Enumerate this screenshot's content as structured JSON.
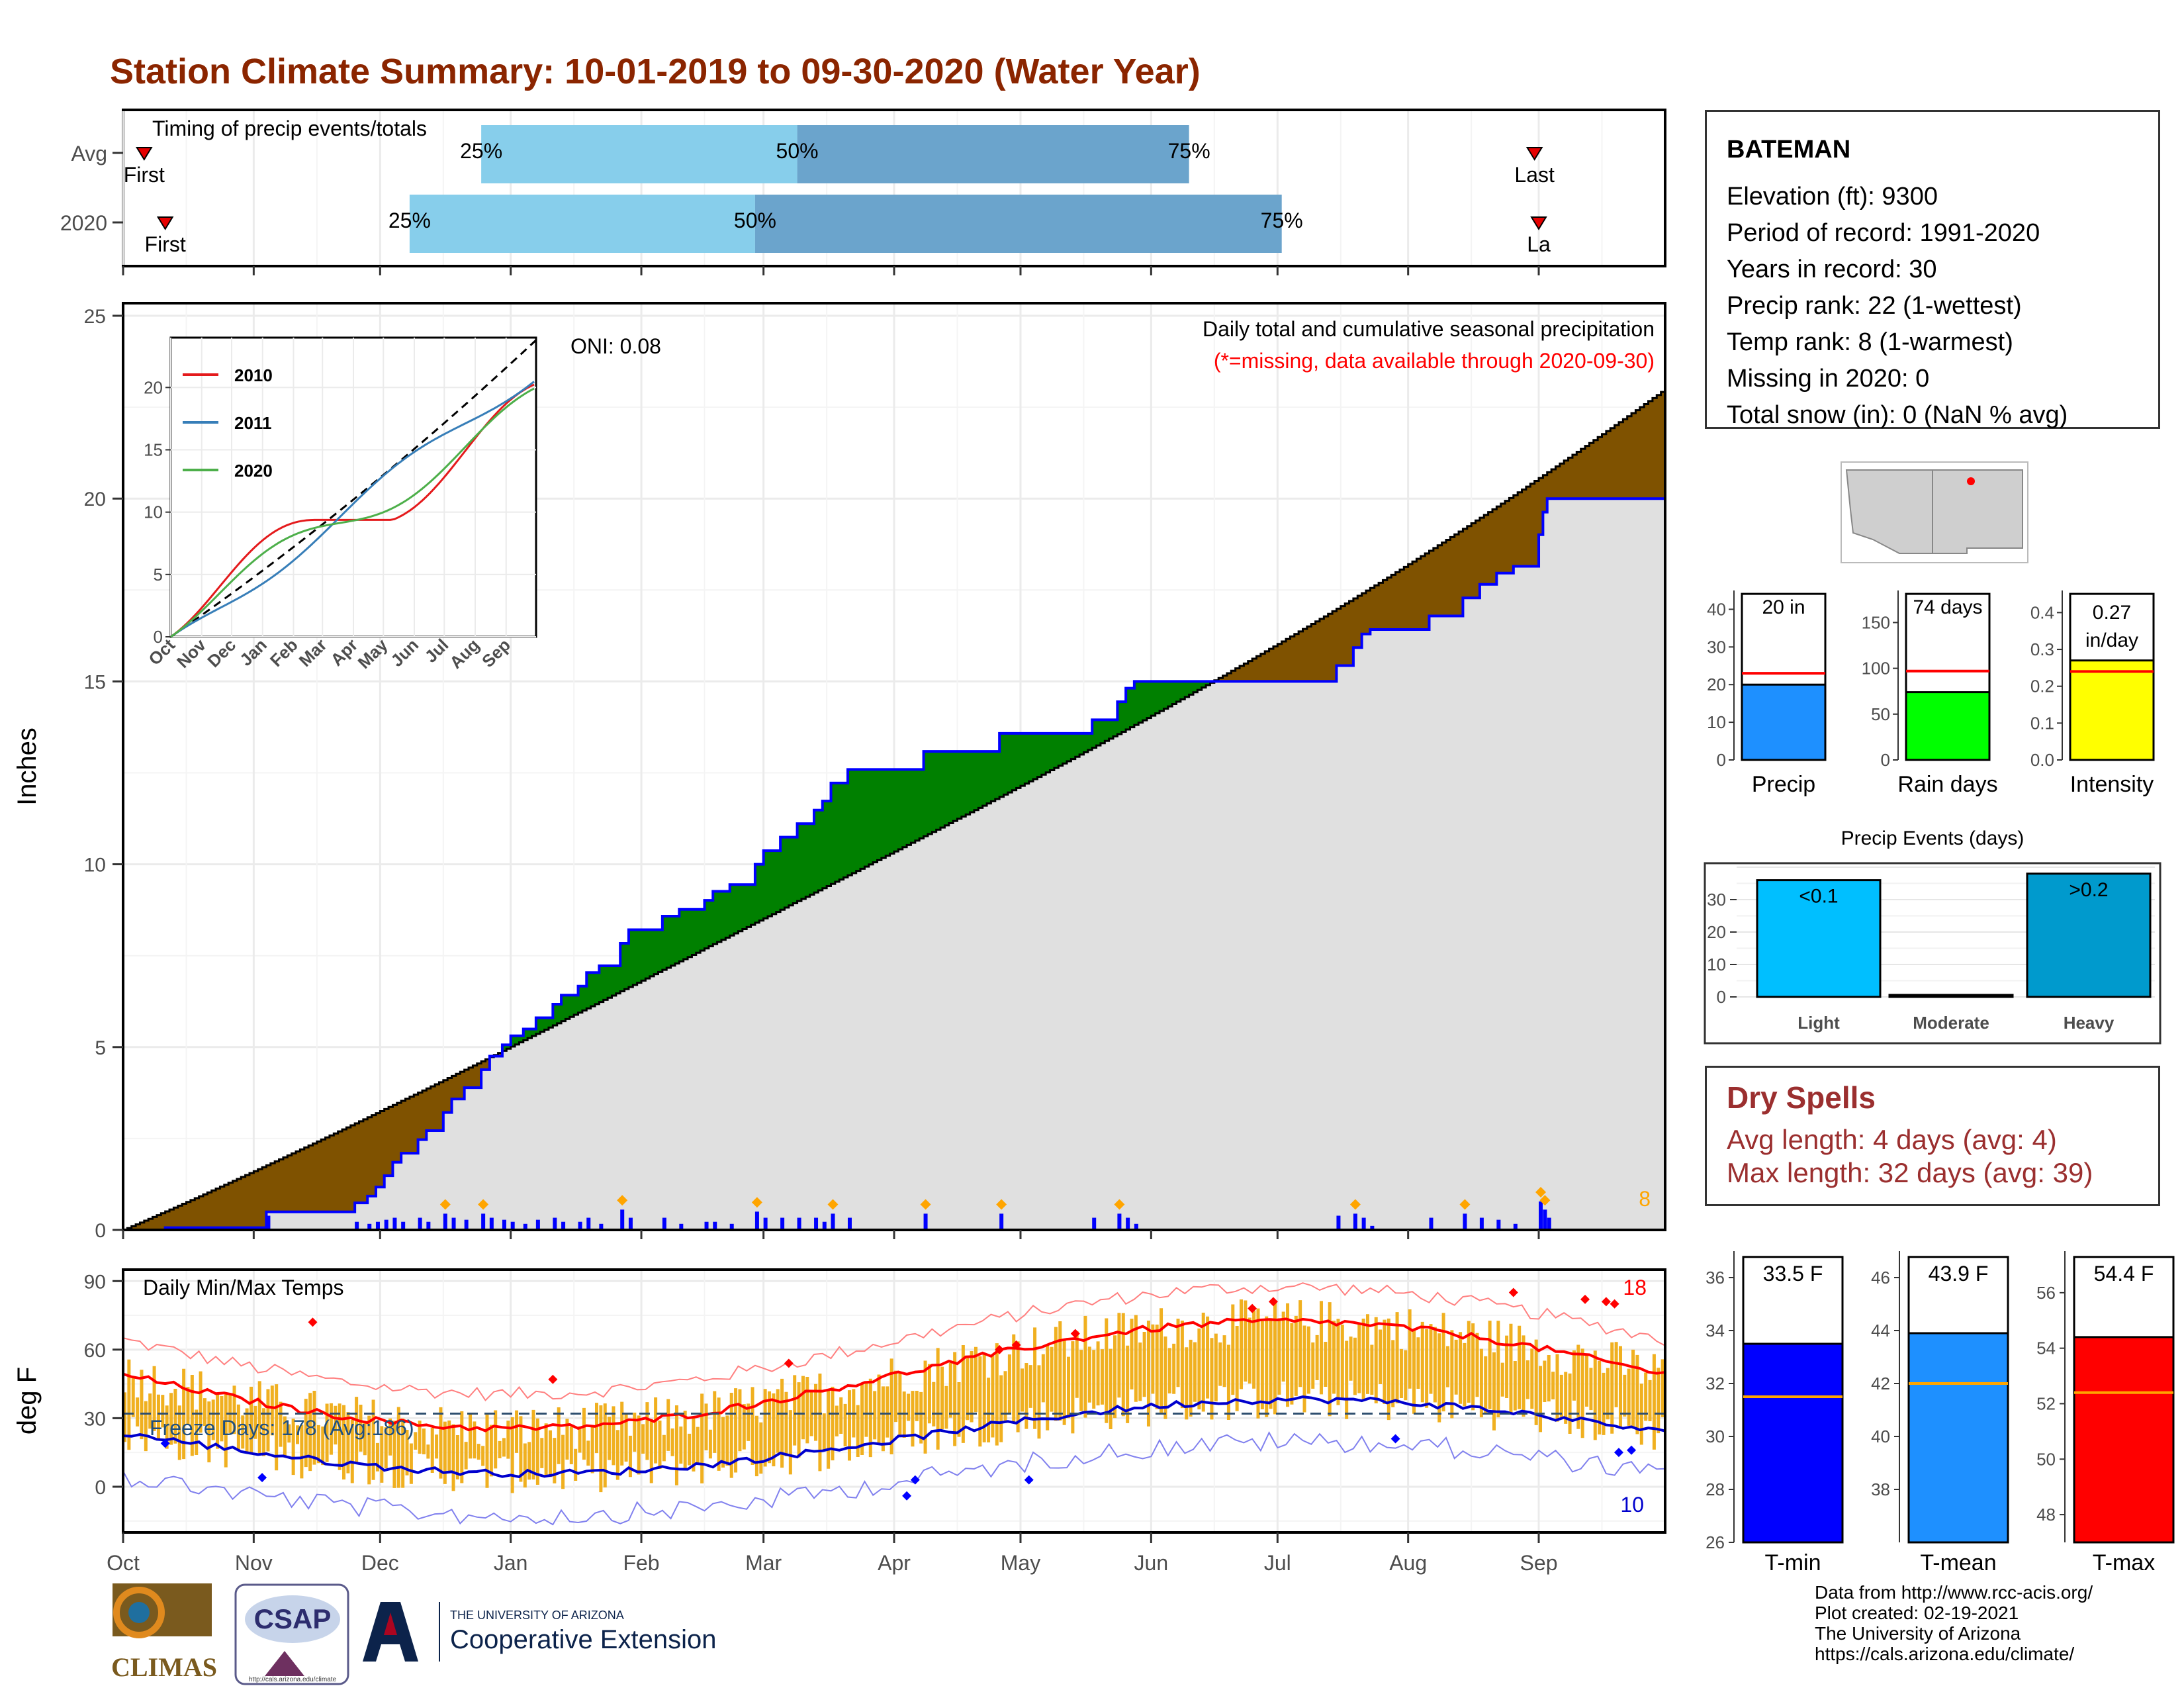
{
  "title": "Station Climate Summary: 10-01-2019 to 09-30-2020 (Water Year)",
  "months": [
    "Oct",
    "Nov",
    "Dec",
    "Jan",
    "Feb",
    "Mar",
    "Apr",
    "May",
    "Jun",
    "Jul",
    "Aug",
    "Sep"
  ],
  "timing": {
    "title": "Timing of precip events/totals",
    "rows": [
      {
        "label": "Avg",
        "first": "First",
        "last": "Last",
        "q25": "25%",
        "q50": "50%",
        "q75": "75%",
        "first_day": 5,
        "q25_day": 85,
        "q50_day": 160,
        "q75_day": 253,
        "last_day": 335
      },
      {
        "label": "2020",
        "first": "First",
        "last": "La",
        "q25": "25%",
        "q50": "50%",
        "q75": "75%",
        "first_day": 10,
        "q25_day": 68,
        "q50_day": 150,
        "q75_day": 275,
        "last_day": 336
      }
    ],
    "colors": {
      "light": "#87ceeb",
      "dark": "#6ba4cc",
      "marker": "#e60000"
    }
  },
  "precip": {
    "ylabel": "Inches",
    "yticks": [
      "0",
      "5",
      "10",
      "15",
      "20",
      "25"
    ],
    "ylim": [
      0,
      25
    ],
    "note1": "Daily total and cumulative seasonal precipitation",
    "note2": "(*=missing, data available through 2020-09-30)",
    "oni": "ONI: 0.08",
    "corner_count": "8",
    "avg_cum_2020_end": 23,
    "obs_cum_2020_end": 20,
    "colors": {
      "deficit": "#7f5200",
      "surplus": "#008000",
      "fill": "#e0e0e0",
      "line": "#0000ff",
      "daily": "#0000ff",
      "marker": "#ffa500"
    },
    "inset": {
      "yticks": [
        "0",
        "5",
        "10",
        "15",
        "20"
      ],
      "legend": [
        "2010",
        "2011",
        "2020"
      ],
      "legend_colors": [
        "#e41a1c",
        "#377eb8",
        "#4daf4a"
      ]
    }
  },
  "temps": {
    "title": "Daily Min/Max Temps",
    "ylabel": "deg F",
    "yticks": [
      "0",
      "30",
      "60",
      "90"
    ],
    "ylim": [
      -20,
      95
    ],
    "freeze": "Freeze Days: 178 (Avg:186)",
    "top_count": "18",
    "bottom_count": "10",
    "freeze_line_f": 32,
    "colors": {
      "bar": "#f0b020",
      "avgmax": "#ff0000",
      "avgmin": "#0000cd",
      "recmax": "#ff8080",
      "recmin": "#8080ee"
    }
  },
  "location_map": {
    "label": "Arizona / New Mexico locator"
  },
  "summary": {
    "station": "BATEMAN",
    "lines": [
      "Elevation (ft): 9300",
      "Period of record: 1991-2020",
      "Years in record: 30",
      "Precip rank: 22 (1-wettest)",
      "Temp rank: 8 (1-warmest)",
      "Missing in 2020: 0",
      "Total snow (in): 0 (NaN % avg)"
    ]
  },
  "mini_bars": [
    {
      "label": "Precip",
      "value_text": "20 in",
      "value": 20,
      "avg": 23,
      "ymax": 45,
      "yticks": [
        "0",
        "10",
        "20",
        "30",
        "40"
      ],
      "ytick_vals": [
        0,
        10,
        20,
        30,
        40
      ],
      "color": "#1e90ff"
    },
    {
      "label": "Rain days",
      "value_text": "74 days",
      "value": 74,
      "avg": 97,
      "ymax": 185,
      "yticks": [
        "0",
        "50",
        "100",
        "150"
      ],
      "ytick_vals": [
        0,
        50,
        100,
        150
      ],
      "color": "#00ff00"
    },
    {
      "label": "Intensity",
      "value_text": "0.27 in/day",
      "value_line1": "0.27",
      "value_line2": "in/day",
      "value": 0.27,
      "avg": 0.24,
      "ymax": 0.46,
      "yticks": [
        "0.0",
        "0.1",
        "0.2",
        "0.3",
        "0.4"
      ],
      "ytick_vals": [
        0,
        0.1,
        0.2,
        0.3,
        0.4
      ],
      "color": "#ffff00"
    }
  ],
  "events": {
    "title": "Precip Events (days)",
    "categories": [
      "Light",
      "Moderate",
      "Heavy"
    ],
    "labels": [
      "<0.1",
      "",
      ">0.2"
    ],
    "values": [
      36,
      0,
      38
    ],
    "colors": [
      "#00bfff",
      "#009acd",
      "#009acd"
    ],
    "yticks": [
      "0",
      "10",
      "20",
      "30"
    ],
    "ytick_vals": [
      0,
      10,
      20,
      30
    ],
    "ymax": 40
  },
  "dry_spells": {
    "title": "Dry Spells",
    "avg": "Avg length: 4 days (avg: 4)",
    "max": "Max length: 32 days (avg: 39)"
  },
  "temp_bars": [
    {
      "label": "T-min",
      "value_text": "33.5 F",
      "value": 33.5,
      "avg": 31.5,
      "ymin": 26,
      "ymax": 37,
      "yticks": [
        "26",
        "28",
        "30",
        "32",
        "34",
        "36"
      ],
      "ytick_vals": [
        26,
        28,
        30,
        32,
        34,
        36
      ],
      "color": "#0000ff"
    },
    {
      "label": "T-mean",
      "value_text": "43.9 F",
      "value": 43.9,
      "avg": 42.0,
      "ymin": 36,
      "ymax": 47,
      "yticks": [
        "38",
        "40",
        "42",
        "44",
        "46"
      ],
      "ytick_vals": [
        38,
        40,
        42,
        44,
        46
      ],
      "color": "#1e90ff"
    },
    {
      "label": "T-max",
      "value_text": "54.4 F",
      "value": 54.4,
      "avg": 52.4,
      "ymin": 47,
      "ymax": 57.5,
      "yticks": [
        "48",
        "50",
        "52",
        "54",
        "56"
      ],
      "ytick_vals": [
        48,
        50,
        52,
        54,
        56
      ],
      "color": "#ff0000"
    }
  ],
  "credits": [
    "Data from http://www.rcc-acis.org/",
    "Plot created: 02-19-2021",
    "The University of Arizona",
    "https://cals.arizona.edu/climate/"
  ],
  "logos": {
    "climas": "CLIMAS",
    "csap": "CSAP",
    "csap_url": "http://cals.arizona.edu/climate",
    "ua_small": "THE UNIVERSITY OF ARIZONA",
    "ua_big": "Cooperative Extension"
  }
}
